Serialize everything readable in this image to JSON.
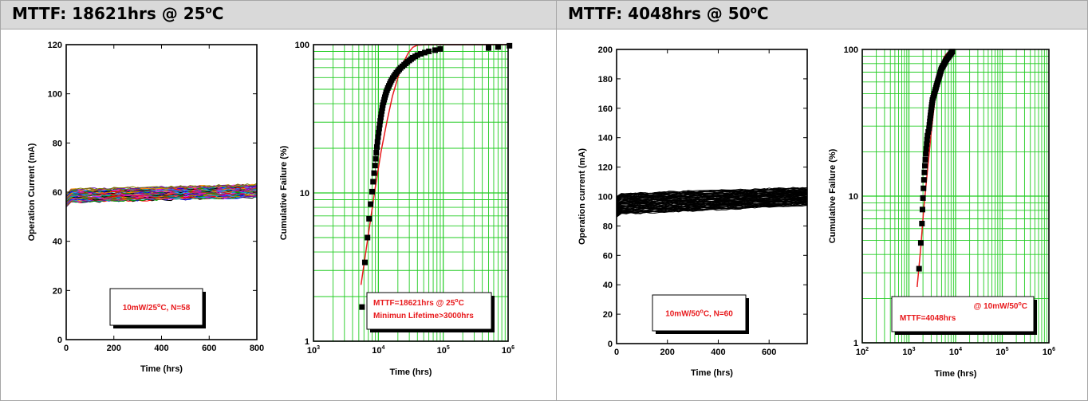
{
  "panels": [
    {
      "title_main": "MTTF: 18621hrs @ 25",
      "title_sup": "o",
      "title_tail": "C"
    },
    {
      "title_main": "MTTF: 4048hrs @ 50",
      "title_sup": "o",
      "title_tail": "C"
    }
  ],
  "chart_data": [
    {
      "type": "line",
      "xlabel": "Time (hrs)",
      "ylabel": "Operation Current (mA)",
      "xlim": [
        0,
        800
      ],
      "ylim": [
        0,
        120
      ],
      "xticks": [
        0,
        200,
        400,
        600,
        800
      ],
      "yticks": [
        0,
        20,
        40,
        60,
        80,
        100,
        120
      ],
      "grid": false,
      "annotation": {
        "parts": [
          "10mW/25",
          "o",
          "C, N=58"
        ],
        "color": "#e8191c"
      },
      "band": {
        "count": 58,
        "start_low": 56,
        "start_high": 61,
        "end_low": 58,
        "end_high": 63
      },
      "series_colors": [
        "#000000",
        "#ff0000",
        "#0000ff",
        "#00a000",
        "#ff00ff",
        "#00b0b0",
        "#8b4513",
        "#ff8c00",
        "#6a0dad",
        "#808000",
        "#c71585",
        "#1e90ff"
      ]
    },
    {
      "type": "scatter",
      "xlabel": "Time (hrs)",
      "ylabel": "Cumulative Failure (%)",
      "xscale": "log",
      "yscale": "log",
      "xlim": [
        1000,
        1000000
      ],
      "ylim": [
        1,
        100
      ],
      "xticks": [
        {
          "base": "10",
          "exp": "3"
        },
        {
          "base": "10",
          "exp": "4"
        },
        {
          "base": "10",
          "exp": "5"
        },
        {
          "base": "10",
          "exp": "6"
        }
      ],
      "yticks": [
        "1",
        "10",
        "100"
      ],
      "grid": true,
      "grid_color": "#22cc22",
      "points": [
        [
          5600,
          1.7
        ],
        [
          6200,
          3.4
        ],
        [
          6800,
          5
        ],
        [
          7200,
          6.7
        ],
        [
          7600,
          8.4
        ],
        [
          8000,
          10.2
        ],
        [
          8300,
          11.9
        ],
        [
          8600,
          13.6
        ],
        [
          8900,
          15.3
        ],
        [
          9100,
          17
        ],
        [
          9300,
          18.7
        ],
        [
          9500,
          20.4
        ],
        [
          9700,
          22.1
        ],
        [
          9900,
          23.8
        ],
        [
          10100,
          25.5
        ],
        [
          10300,
          27.2
        ],
        [
          10500,
          28.9
        ],
        [
          10700,
          30.6
        ],
        [
          10900,
          32.3
        ],
        [
          11100,
          34
        ],
        [
          11300,
          35.7
        ],
        [
          11500,
          37.4
        ],
        [
          11700,
          39.1
        ],
        [
          12000,
          40.8
        ],
        [
          12300,
          42.5
        ],
        [
          12600,
          44.2
        ],
        [
          12900,
          45.9
        ],
        [
          13200,
          47.6
        ],
        [
          13600,
          49.3
        ],
        [
          14000,
          51
        ],
        [
          14500,
          52.7
        ],
        [
          15000,
          54.4
        ],
        [
          15500,
          56.1
        ],
        [
          16000,
          57.8
        ],
        [
          16700,
          59.5
        ],
        [
          17400,
          61.2
        ],
        [
          18200,
          62.9
        ],
        [
          19000,
          64.6
        ],
        [
          20000,
          66.3
        ],
        [
          21000,
          68
        ],
        [
          22000,
          69.7
        ],
        [
          23500,
          71.4
        ],
        [
          25000,
          73.1
        ],
        [
          26500,
          74.8
        ],
        [
          28000,
          76.5
        ],
        [
          30000,
          78.2
        ],
        [
          32000,
          79.9
        ],
        [
          34000,
          81.6
        ],
        [
          37000,
          83.3
        ],
        [
          40000,
          85
        ],
        [
          45000,
          86.7
        ],
        [
          52000,
          88.4
        ],
        [
          60000,
          90.1
        ],
        [
          75000,
          91.8
        ],
        [
          90000,
          93.5
        ],
        [
          500000,
          95
        ],
        [
          700000,
          96.5
        ],
        [
          1050000,
          98.3
        ]
      ],
      "fit_curve": [
        [
          5400,
          2.4
        ],
        [
          7000,
          5.2
        ],
        [
          9000,
          11
        ],
        [
          11000,
          19
        ],
        [
          13500,
          30
        ],
        [
          16500,
          45
        ],
        [
          20000,
          60
        ],
        [
          24000,
          75
        ],
        [
          29000,
          88
        ],
        [
          34000,
          96
        ],
        [
          40000,
          99.3
        ],
        [
          55000,
          100
        ],
        [
          1000000,
          100
        ]
      ],
      "annotation": {
        "line1_parts": [
          "MTTF=18621hrs @ 25",
          "o",
          "C"
        ],
        "line2": "Minimun Lifetime>3000hrs",
        "color": "#e8191c"
      }
    },
    {
      "type": "line",
      "xlabel": "Time (hrs)",
      "ylabel": "Operation current (mA)",
      "xlim": [
        0,
        750
      ],
      "ylim": [
        0,
        200
      ],
      "xticks": [
        0,
        200,
        400,
        600
      ],
      "yticks": [
        0,
        20,
        40,
        60,
        80,
        100,
        120,
        140,
        160,
        180,
        200
      ],
      "grid": false,
      "annotation": {
        "parts": [
          "10mW/50",
          "o",
          "C, N=60"
        ],
        "color": "#e8191c"
      },
      "band": {
        "count": 60,
        "start_low": 88,
        "start_high": 102,
        "end_low": 94,
        "end_high": 106
      },
      "series_colors": [
        "#000000"
      ]
    },
    {
      "type": "scatter",
      "xlabel": "Time (hrs)",
      "ylabel": "Cumulative Failure (%)",
      "xscale": "log",
      "yscale": "log",
      "xlim": [
        100,
        1000000
      ],
      "ylim": [
        1,
        100
      ],
      "xticks": [
        {
          "base": "10",
          "exp": "2"
        },
        {
          "base": "10",
          "exp": "3"
        },
        {
          "base": "10",
          "exp": "4"
        },
        {
          "base": "10",
          "exp": "5"
        },
        {
          "base": "10",
          "exp": "6"
        }
      ],
      "yticks": [
        "1",
        "10",
        "100"
      ],
      "grid": true,
      "grid_color": "#22cc22",
      "points": [
        [
          1650,
          3.2
        ],
        [
          1800,
          4.8
        ],
        [
          1900,
          6.5
        ],
        [
          1950,
          8.1
        ],
        [
          2000,
          9.7
        ],
        [
          2050,
          11.3
        ],
        [
          2100,
          12.9
        ],
        [
          2150,
          14.5
        ],
        [
          2200,
          16.1
        ],
        [
          2250,
          17.7
        ],
        [
          2300,
          19.4
        ],
        [
          2350,
          21
        ],
        [
          2400,
          22.6
        ],
        [
          2450,
          24.2
        ],
        [
          2500,
          25.8
        ],
        [
          2600,
          27.4
        ],
        [
          2700,
          29
        ],
        [
          2750,
          30.6
        ],
        [
          2800,
          32.3
        ],
        [
          2850,
          33.9
        ],
        [
          2900,
          35.5
        ],
        [
          2950,
          37.1
        ],
        [
          3000,
          38.7
        ],
        [
          3050,
          40.3
        ],
        [
          3100,
          41.9
        ],
        [
          3150,
          43.5
        ],
        [
          3200,
          45.2
        ],
        [
          3300,
          46.8
        ],
        [
          3400,
          48.4
        ],
        [
          3500,
          50
        ],
        [
          3600,
          51.6
        ],
        [
          3700,
          53.2
        ],
        [
          3800,
          54.8
        ],
        [
          3900,
          56.5
        ],
        [
          4000,
          58.1
        ],
        [
          4100,
          59.7
        ],
        [
          4200,
          61.3
        ],
        [
          4300,
          62.9
        ],
        [
          4400,
          64.5
        ],
        [
          4500,
          66.1
        ],
        [
          4600,
          67.7
        ],
        [
          4700,
          69.4
        ],
        [
          4800,
          71
        ],
        [
          4900,
          72.6
        ],
        [
          5000,
          74.2
        ],
        [
          5200,
          75.8
        ],
        [
          5400,
          77.4
        ],
        [
          5600,
          79
        ],
        [
          5800,
          80.6
        ],
        [
          6000,
          82.3
        ],
        [
          6200,
          83.9
        ],
        [
          6400,
          85.5
        ],
        [
          6700,
          87.1
        ],
        [
          7000,
          88.7
        ],
        [
          7300,
          90.3
        ],
        [
          7600,
          91.9
        ],
        [
          7900,
          93.5
        ],
        [
          8200,
          95.2
        ],
        [
          8500,
          96.8
        ]
      ],
      "fit_curve": [
        [
          1500,
          2.4
        ],
        [
          1800,
          4.5
        ],
        [
          2100,
          8.5
        ],
        [
          2500,
          15
        ],
        [
          3000,
          27
        ],
        [
          3500,
          42
        ],
        [
          4000,
          57
        ],
        [
          4500,
          70
        ],
        [
          5000,
          80
        ],
        [
          5600,
          88
        ],
        [
          6300,
          93
        ],
        [
          7000,
          96
        ],
        [
          8000,
          98.2
        ]
      ],
      "annotation": {
        "line1_parts": [
          "@ 10mW/50",
          "o",
          "C"
        ],
        "line2": "MTTF=4048hrs",
        "color": "#e8191c"
      }
    }
  ]
}
